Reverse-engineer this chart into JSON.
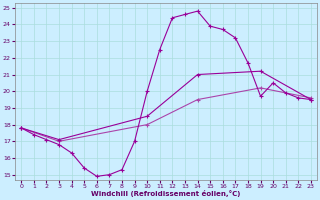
{
  "xlabel": "Windchill (Refroidissement éolien,°C)",
  "xlim": [
    -0.5,
    23.5
  ],
  "ylim": [
    14.7,
    25.3
  ],
  "yticks": [
    15,
    16,
    17,
    18,
    19,
    20,
    21,
    22,
    23,
    24,
    25
  ],
  "xticks": [
    0,
    1,
    2,
    3,
    4,
    5,
    6,
    7,
    8,
    9,
    10,
    11,
    12,
    13,
    14,
    15,
    16,
    17,
    18,
    19,
    20,
    21,
    22,
    23
  ],
  "bg_color": "#cceeff",
  "grid_color": "#aadddd",
  "line_color1": "#990099",
  "line_color2": "#aa44aa",
  "line_color3": "#990099",
  "series1_x": [
    0,
    1,
    2,
    3,
    4,
    5,
    6,
    7,
    8,
    9,
    10,
    11,
    12,
    13,
    14,
    15,
    16,
    17,
    18,
    19,
    20,
    21,
    22,
    23
  ],
  "series1_y": [
    17.8,
    17.4,
    17.1,
    16.8,
    16.3,
    15.4,
    14.9,
    15.0,
    15.3,
    17.0,
    20.0,
    22.5,
    24.4,
    24.6,
    24.8,
    23.9,
    23.7,
    23.2,
    21.7,
    19.7,
    20.5,
    19.9,
    19.6,
    19.5
  ],
  "series2_x": [
    0,
    3,
    10,
    14,
    19,
    23
  ],
  "series2_y": [
    17.8,
    17.0,
    18.0,
    19.5,
    20.2,
    19.6
  ],
  "series3_x": [
    0,
    3,
    10,
    14,
    19,
    23
  ],
  "series3_y": [
    17.8,
    17.1,
    18.5,
    21.0,
    21.2,
    19.5
  ]
}
